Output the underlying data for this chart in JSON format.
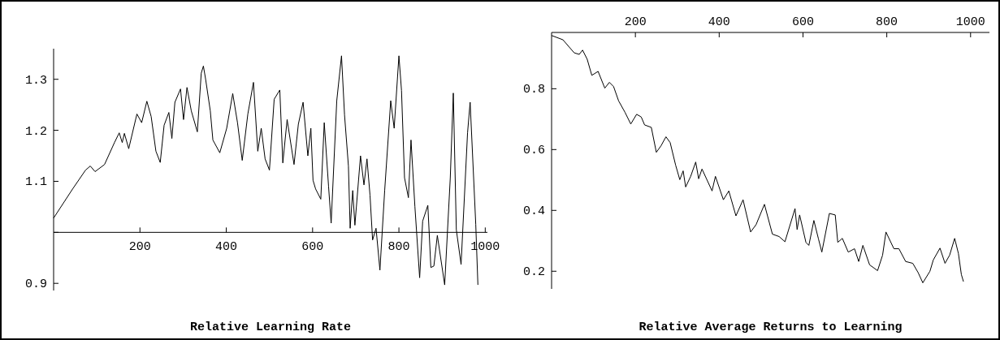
{
  "chart_data": [
    {
      "type": "line",
      "title": "Relative Learning Rate",
      "xlim": [
        0,
        1005
      ],
      "ylim": [
        0.886,
        1.36
      ],
      "xticks": [
        200,
        400,
        600,
        800,
        1000
      ],
      "yticks": [
        0.9,
        {
          "value": 1,
          "label": null
        },
        1.1,
        1.2,
        1.3
      ],
      "marker": "none",
      "series": [
        {
          "color": "#000000",
          "x": [
            0,
            44,
            74,
            85,
            96,
            118,
            141,
            152,
            159,
            164,
            174,
            193,
            204,
            216,
            226,
            237,
            247,
            256,
            267,
            274,
            281,
            294,
            301,
            309,
            319,
            333,
            342,
            347,
            352,
            363,
            369,
            385,
            401,
            415,
            426,
            437,
            450,
            463,
            473,
            481,
            490,
            500,
            511,
            524,
            531,
            541,
            557,
            567,
            578,
            589,
            596,
            601,
            607,
            619,
            627,
            637,
            643,
            656,
            667,
            674,
            683,
            687,
            693,
            698,
            711,
            719,
            726,
            733,
            739,
            747,
            756,
            767,
            781,
            789,
            800,
            806,
            813,
            822,
            828,
            837,
            848,
            855,
            867,
            874,
            881,
            889,
            906,
            919,
            926,
            933,
            944,
            959,
            965,
            978,
            983
          ],
          "values": [
            1.028,
            1.085,
            1.122,
            1.13,
            1.119,
            1.133,
            1.176,
            1.195,
            1.176,
            1.194,
            1.164,
            1.232,
            1.215,
            1.257,
            1.227,
            1.159,
            1.137,
            1.21,
            1.235,
            1.184,
            1.255,
            1.281,
            1.221,
            1.284,
            1.238,
            1.197,
            1.312,
            1.326,
            1.301,
            1.238,
            1.181,
            1.156,
            1.204,
            1.272,
            1.215,
            1.141,
            1.232,
            1.294,
            1.159,
            1.204,
            1.144,
            1.122,
            1.261,
            1.279,
            1.136,
            1.221,
            1.133,
            1.212,
            1.255,
            1.15,
            1.204,
            1.102,
            1.085,
            1.065,
            1.215,
            1.09,
            1.018,
            1.258,
            1.346,
            1.23,
            1.13,
            1.008,
            1.082,
            1.014,
            1.15,
            1.093,
            1.144,
            1.073,
            0.985,
            1.008,
            0.926,
            1.082,
            1.258,
            1.204,
            1.346,
            1.278,
            1.107,
            1.068,
            1.181,
            1.051,
            0.911,
            1.022,
            1.053,
            0.931,
            0.934,
            0.994,
            0.897,
            1.107,
            1.273,
            1.005,
            0.937,
            1.195,
            1.255,
            1.016,
            0.897
          ]
        }
      ]
    },
    {
      "type": "line",
      "title": "Relative Average Returns to Learning",
      "xlim": [
        0,
        1045
      ],
      "ylim": [
        0.142,
        0.985
      ],
      "xticks": [
        200,
        400,
        600,
        800,
        1000
      ],
      "yticks": [
        0.2,
        0.4,
        0.6,
        0.8
      ],
      "marker": "none",
      "series": [
        {
          "color": "#000000",
          "x": [
            0,
            27,
            54,
            66,
            74,
            85,
            96,
            111,
            127,
            138,
            148,
            160,
            175,
            189,
            203,
            214,
            222,
            238,
            250,
            261,
            273,
            283,
            296,
            306,
            314,
            320,
            332,
            344,
            351,
            359,
            383,
            391,
            410,
            423,
            440,
            457,
            475,
            488,
            508,
            527,
            543,
            557,
            581,
            586,
            592,
            607,
            614,
            626,
            637,
            645,
            663,
            677,
            683,
            694,
            708,
            723,
            733,
            743,
            759,
            778,
            790,
            798,
            817,
            829,
            845,
            862,
            875,
            886,
            903,
            911,
            927,
            939,
            950,
            962,
            971,
            978,
            983
          ],
          "values": [
            0.975,
            0.961,
            0.918,
            0.913,
            0.927,
            0.897,
            0.844,
            0.857,
            0.802,
            0.821,
            0.807,
            0.76,
            0.723,
            0.684,
            0.716,
            0.707,
            0.681,
            0.673,
            0.591,
            0.612,
            0.642,
            0.623,
            0.549,
            0.501,
            0.53,
            0.477,
            0.512,
            0.559,
            0.504,
            0.536,
            0.464,
            0.512,
            0.435,
            0.464,
            0.382,
            0.435,
            0.329,
            0.353,
            0.42,
            0.322,
            0.314,
            0.297,
            0.406,
            0.337,
            0.385,
            0.295,
            0.285,
            0.367,
            0.306,
            0.263,
            0.39,
            0.385,
            0.295,
            0.308,
            0.263,
            0.274,
            0.232,
            0.285,
            0.221,
            0.202,
            0.253,
            0.329,
            0.274,
            0.274,
            0.232,
            0.226,
            0.195,
            0.162,
            0.2,
            0.237,
            0.276,
            0.226,
            0.253,
            0.308,
            0.258,
            0.189,
            0.166
          ]
        }
      ]
    }
  ]
}
